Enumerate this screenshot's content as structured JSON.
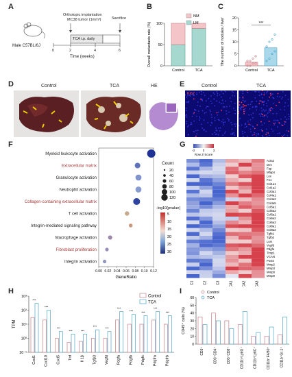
{
  "panels": {
    "A": "A",
    "B": "B",
    "C": "C",
    "D": "D",
    "E": "E",
    "F": "F",
    "G": "G",
    "H": "H",
    "I": "I"
  },
  "panelA": {
    "mouse_label": "Male C57BL/6J",
    "implant_label_1": "Orthotopic implantation",
    "implant_label_2": "MC38 tumor (1mm³)",
    "sacrifice_label": "Sacrifice",
    "treatment_label": "TCA i.p. daily",
    "axis_label": "Time (weeks)",
    "ticks": [
      "0",
      "2",
      "4",
      "6"
    ]
  },
  "chart_data": [
    {
      "panel": "B",
      "type": "bar",
      "stacked": true,
      "categories": [
        "Control",
        "TCA"
      ],
      "series": [
        {
          "name": "LM",
          "values": [
            50,
            88
          ]
        },
        {
          "name": "NM",
          "values": [
            50,
            12
          ]
        }
      ],
      "ylabel": "Overall metastasis rate (%)",
      "yticks": [
        "0",
        "50",
        "100"
      ],
      "ylim": [
        0,
        100
      ],
      "legend": "top-right"
    },
    {
      "panel": "C",
      "type": "bar",
      "categories": [
        "Control",
        "TCA"
      ],
      "values": [
        1.5,
        7.5
      ],
      "ylabel": "The number of nodules / liver",
      "yticks": [
        "0",
        "5",
        "10",
        "15",
        "20"
      ],
      "ylim": [
        0,
        20
      ],
      "annotation": "***",
      "points": {
        "Control": [
          0,
          0,
          1,
          1,
          2,
          2,
          3,
          4
        ],
        "TCA": [
          2,
          3,
          5,
          6,
          8,
          10,
          11,
          13
        ]
      }
    },
    {
      "panel": "F",
      "type": "scatter",
      "xlabel": "GeneRatio",
      "xticks": [
        "0.00",
        "0.02",
        "0.04",
        "0.06",
        "0.08",
        "0.10",
        "0.12"
      ],
      "xlim": [
        0,
        0.12
      ],
      "categories": [
        "Myeloid leukocyte activation",
        "Extracellular matrix",
        "Granulocyte activation",
        "Neutrophil activation",
        "Collagen-containing extracellular matrix",
        "T cell activation",
        "Integrin-mediated signaling pathway",
        "Macrophage activation",
        "Fibroblast proliferation",
        "Integrin activation"
      ],
      "x": [
        0.115,
        0.085,
        0.087,
        0.087,
        0.083,
        0.062,
        0.07,
        0.025,
        0.018,
        0.013
      ],
      "count": [
        130,
        70,
        80,
        80,
        100,
        45,
        30,
        40,
        25,
        25
      ],
      "neglog10p": [
        30,
        22,
        18,
        17,
        28,
        5,
        3,
        13,
        14,
        15
      ],
      "size_legend_title": "Count",
      "size_legend": [
        "20",
        "40",
        "60",
        "80",
        "100",
        "120"
      ],
      "color_legend_title": "-log10(pvalue)",
      "color_legend": [
        "5",
        "10",
        "15",
        "20",
        "25",
        "30"
      ]
    },
    {
      "panel": "H",
      "type": "bar",
      "categories": [
        "Cxcl1",
        "Cxcl10",
        "Cxcl5",
        "Tnf",
        "Il 1β",
        "Tgfβ3",
        "Vegfd",
        "Pdgfa",
        "Pdgfb",
        "Pdgfc",
        "Pdgfra",
        "Pdgfrb"
      ],
      "series": [
        {
          "name": "Control",
          "values": [
            30,
            20,
            1,
            0.5,
            0.6,
            1,
            1,
            20,
            10,
            10,
            20,
            10
          ]
        },
        {
          "name": "TCA",
          "values": [
            300,
            100,
            3,
            2,
            2,
            4,
            3,
            80,
            50,
            40,
            80,
            40
          ]
        }
      ],
      "ylabel": "TPM",
      "yticks": [
        "10⁻¹",
        "10⁰",
        "10¹",
        "10²",
        "10³"
      ],
      "scale": "log",
      "ylim": [
        0.1,
        1000
      ],
      "legend": "top-right"
    },
    {
      "panel": "I",
      "type": "bar",
      "categories": [
        "CD3⁺",
        "CD3⁺CD4⁺",
        "CD3⁺CD8⁺",
        "CD11b⁺Ly6G⁺",
        "CD11b⁺Ly6C⁺",
        "CD11b⁺F4/80⁺",
        "CD11b⁺Gr-1⁺"
      ],
      "series": [
        {
          "name": "Control",
          "values": [
            35,
            40,
            30,
            25,
            10,
            10,
            12
          ]
        },
        {
          "name": "TCA",
          "values": [
            25,
            30,
            20,
            42,
            15,
            22,
            35
          ]
        }
      ],
      "ylabel": "CD45⁺ cells (%)",
      "yticks": [
        "0",
        "10",
        "20",
        "30",
        "40",
        "50",
        "60"
      ],
      "ylim": [
        0,
        60
      ],
      "legend": "top-left"
    }
  ],
  "panelD": {
    "control": "Control",
    "tca": "TCA",
    "he": "HE"
  },
  "panelE": {
    "ki67": "Ki67",
    "control": "Control",
    "tca": "TCA"
  },
  "panelG": {
    "scale_title": "Row Z-Score",
    "scale_ticks": [
      "-3",
      "0",
      "3"
    ],
    "columns": [
      "C1",
      "C2",
      "C3",
      "TCA1",
      "TCA2",
      "TCA3"
    ],
    "genes": [
      "Acta2",
      "Des",
      "Fap",
      "Mfap4",
      "Lox",
      "Fn1",
      "Col1a1",
      "Col1a2",
      "Col3a1",
      "Col4a1",
      "Col4a2",
      "Col4a5",
      "Col5a1",
      "Col5a2",
      "Col6a1",
      "Col6a2",
      "Col6a3",
      "Col8a1",
      "Col8a2",
      "Tgfb1",
      "Tgfb3",
      "Lum",
      "Vegfd",
      "Pdgfa",
      "Timp1",
      "VCAN",
      "Postn",
      "Mmp2",
      "Mmp3",
      "Mmp8",
      "Mmp9"
    ]
  }
}
